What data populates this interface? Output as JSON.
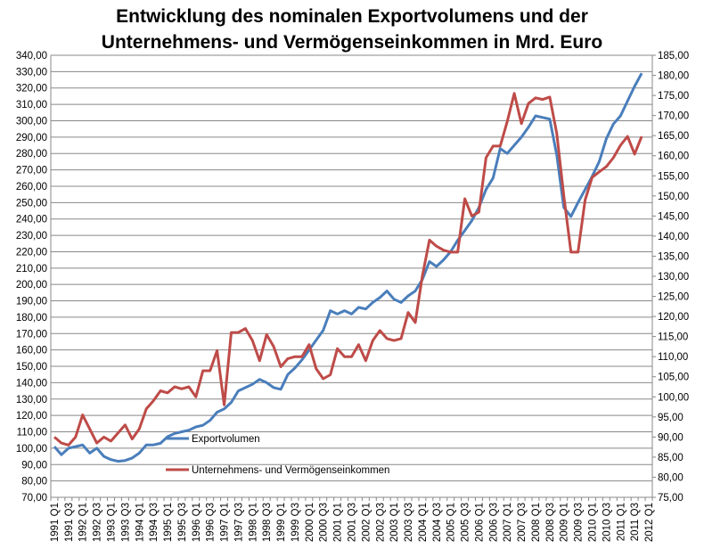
{
  "chart_data": {
    "type": "line",
    "title_lines": [
      "Entwicklung des nominalen Exportvolumens und der",
      "Unternehmens- und Vermögenseinkommen in Mrd. Euro"
    ],
    "xlabel": "",
    "ylabel": "",
    "y_left": {
      "range": [
        70,
        340
      ],
      "step": 10
    },
    "y_right": {
      "range": [
        75,
        185
      ],
      "step": 5
    },
    "grid": "horizontal",
    "legend_placement": "inside-bottom-left",
    "categories_start": "1991 Q1",
    "categories_end": "2012 Q1",
    "tick_label_every": 2,
    "series": [
      {
        "name": "Exportvolumen",
        "axis": "left",
        "color": "#4a7ebb",
        "values": [
          101,
          96,
          100,
          101,
          102,
          97,
          100,
          95,
          93,
          92,
          92.5,
          94,
          97,
          102,
          102,
          103,
          107,
          109,
          110,
          111,
          113,
          114,
          117,
          122,
          124,
          128,
          135,
          137,
          139,
          142,
          140,
          137,
          136,
          145,
          149,
          154,
          160,
          166,
          172,
          184,
          182,
          184,
          182,
          186,
          185,
          189,
          192,
          196,
          191,
          189,
          193,
          196,
          203,
          214,
          211,
          215,
          220,
          227,
          233,
          239,
          247,
          258,
          265,
          283,
          280,
          285,
          290,
          296,
          303,
          302,
          301,
          279,
          247,
          241.5,
          250,
          258,
          266,
          275,
          289,
          298,
          303,
          312,
          321,
          329
        ]
      },
      {
        "name": "Unternehmens- und Vermögenseinkommen",
        "axis": "right",
        "color": "#be4b48",
        "values": [
          90,
          88.5,
          88,
          90,
          95.5,
          92,
          88.5,
          90,
          89,
          91,
          93,
          89.5,
          92,
          97,
          99,
          101.5,
          101,
          102.5,
          102,
          102.5,
          100,
          106.5,
          106.5,
          111.5,
          98,
          116,
          116,
          117,
          114,
          109,
          115.5,
          112.5,
          107.5,
          109.5,
          110,
          110,
          113,
          107,
          104.5,
          105.5,
          112,
          110,
          110,
          113,
          109,
          114,
          116.5,
          114.5,
          114,
          114.5,
          121,
          118.5,
          130,
          139,
          137.5,
          136.5,
          136,
          136,
          149.3,
          145,
          146,
          159.5,
          162.4,
          162.4,
          168.5,
          175.5,
          168,
          173,
          174.4,
          174,
          174.6,
          165.5,
          150,
          136,
          136,
          149,
          154.6,
          156,
          157.3,
          159.5,
          162.6,
          164.8,
          160.4,
          164.8
        ]
      }
    ]
  }
}
